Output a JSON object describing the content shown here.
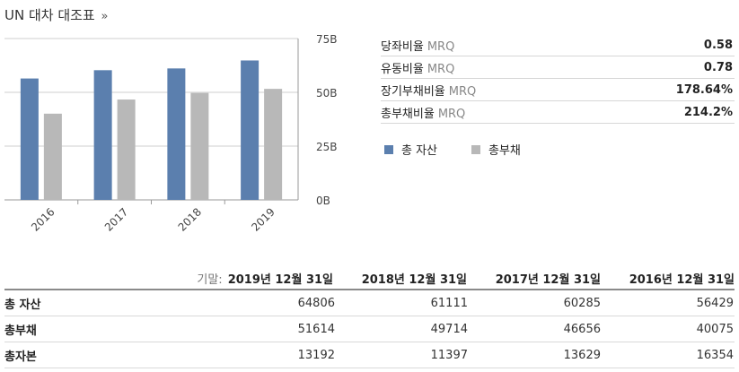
{
  "title": "UN 대차 대조표",
  "title_chevron": "»",
  "colors": {
    "assets": "#5b7fae",
    "liabilities": "#b8b8b8"
  },
  "ratios": [
    {
      "name": "당좌비율",
      "mrq": "MRQ",
      "value": "0.58"
    },
    {
      "name": "유동비율",
      "mrq": "MRQ",
      "value": "0.78"
    },
    {
      "name": "장기부채비율",
      "mrq": "MRQ",
      "value": "178.64%"
    },
    {
      "name": "총부채비율",
      "mrq": "MRQ",
      "value": "214.2%"
    }
  ],
  "legend": {
    "assets": "총 자산",
    "liabilities": "총부채"
  },
  "chart_data": {
    "type": "bar",
    "categories": [
      "2016",
      "2017",
      "2018",
      "2019"
    ],
    "series": [
      {
        "name": "총 자산",
        "values": [
          56429,
          60285,
          61111,
          64806
        ]
      },
      {
        "name": "총부채",
        "values": [
          40075,
          46656,
          49714,
          51614
        ]
      }
    ],
    "y_ticks": [
      0,
      25000,
      50000,
      75000
    ],
    "y_tick_labels": [
      "0B",
      "25B",
      "50B",
      "75B"
    ],
    "ylim": [
      0,
      75000
    ],
    "grid": true,
    "axis_position": "right",
    "legend_position": "right"
  },
  "table": {
    "period_label": "기말:",
    "columns": [
      "2019년 12월 31일",
      "2018년 12월 31일",
      "2017년 12월 31일",
      "2016년 12월 31일"
    ],
    "rows": [
      {
        "label": "총 자산",
        "values": [
          "64806",
          "61111",
          "60285",
          "56429"
        ]
      },
      {
        "label": "총부채",
        "values": [
          "51614",
          "49714",
          "46656",
          "40075"
        ]
      },
      {
        "label": "총자본",
        "values": [
          "13192",
          "11397",
          "13629",
          "16354"
        ]
      }
    ]
  }
}
